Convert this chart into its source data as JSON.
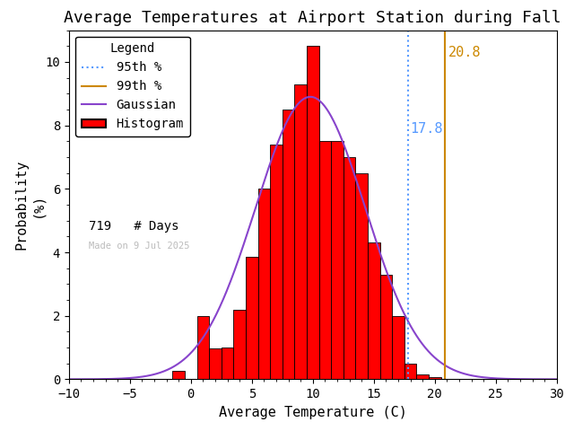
{
  "title": "Average Temperatures at Airport Station during Fall",
  "xlabel": "Average Temperature (C)",
  "ylabel": "Probability\n(%)",
  "xlim": [
    -10,
    30
  ],
  "ylim": [
    0,
    11
  ],
  "bin_centers": [
    -2,
    -1,
    0,
    1,
    2,
    3,
    4,
    5,
    6,
    7,
    8,
    9,
    10,
    11,
    12,
    13,
    14,
    15,
    16,
    17,
    18,
    19,
    20,
    21
  ],
  "bar_heights": [
    0.0,
    0.28,
    0.0,
    2.0,
    0.97,
    1.0,
    2.2,
    3.85,
    6.0,
    7.4,
    8.5,
    9.3,
    10.5,
    7.5,
    7.5,
    7.0,
    6.5,
    4.3,
    3.3,
    2.0,
    0.5,
    0.14,
    0.07,
    0.0
  ],
  "bin_width": 1.0,
  "gauss_mean": 9.8,
  "gauss_std": 4.5,
  "gauss_peak": 8.9,
  "percentile_95": 17.8,
  "percentile_99": 20.8,
  "n_days": 719,
  "watermark": "Made on 9 Jul 2025",
  "bar_color": "#ff0000",
  "bar_edgecolor": "#000000",
  "gauss_color": "#8844cc",
  "p95_color": "#5599ff",
  "p99_color": "#cc8800",
  "watermark_color": "#bbbbbb",
  "background_color": "#ffffff",
  "title_fontsize": 13,
  "axis_fontsize": 11,
  "legend_fontsize": 10,
  "tick_fontsize": 10,
  "yticks": [
    0,
    2,
    4,
    6,
    8,
    10
  ],
  "xticks": [
    -10,
    -5,
    0,
    5,
    10,
    15,
    20,
    25,
    30
  ]
}
